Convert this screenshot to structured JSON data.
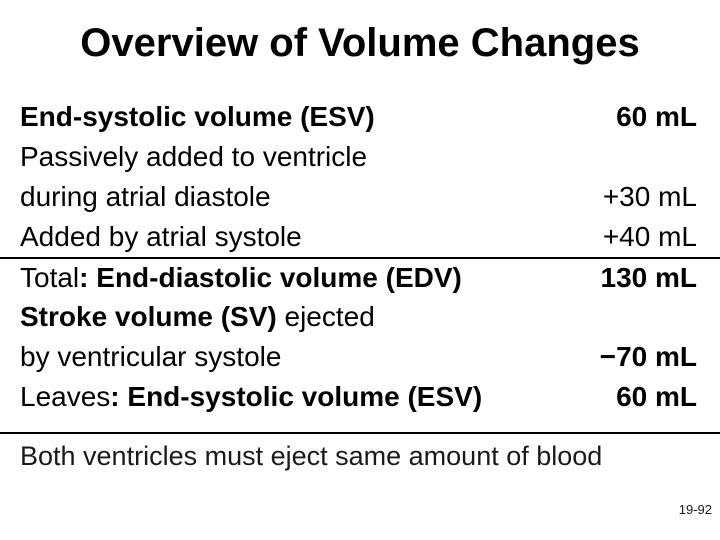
{
  "slide": {
    "title": "Overview of Volume Changes",
    "footer_note": "Both ventricles must eject same amount of blood",
    "page_number": "19-92"
  },
  "colors": {
    "background": "#ffffff",
    "text": "#000000",
    "divider": "#000000"
  },
  "volume_table": {
    "rows": [
      {
        "label": [
          {
            "text": "End-systolic volume (ESV)",
            "bold": true
          }
        ],
        "value": "60 mL",
        "value_bold": true,
        "divider_above": false
      },
      {
        "label": [
          {
            "text": "Passively added to ventricle",
            "bold": false
          }
        ],
        "value": "",
        "value_bold": false,
        "divider_above": false
      },
      {
        "label": [
          {
            "text": "during atrial diastole",
            "bold": false
          }
        ],
        "value": "+30 mL",
        "value_bold": false,
        "divider_above": false
      },
      {
        "label": [
          {
            "text": "Added by atrial systole",
            "bold": false
          }
        ],
        "value": "+40 mL",
        "value_bold": false,
        "divider_above": false
      },
      {
        "label": [
          {
            "text": "Total",
            "bold": false
          },
          {
            "text": ":",
            "bold": true
          },
          {
            "text": " End-diastolic volume (EDV)",
            "bold": true
          }
        ],
        "value": "130 mL",
        "value_bold": true,
        "divider_above": true
      },
      {
        "label": [
          {
            "text": "Stroke volume (SV)",
            "bold": true
          },
          {
            "text": " ejected",
            "bold": false
          }
        ],
        "value": "",
        "value_bold": false,
        "divider_above": false
      },
      {
        "label": [
          {
            "text": "by ventricular systole",
            "bold": false
          }
        ],
        "value": "−70 mL",
        "value_bold": true,
        "divider_above": false
      },
      {
        "label": [
          {
            "text": "Leaves",
            "bold": false
          },
          {
            "text": ":",
            "bold": true
          },
          {
            "text": " End-systolic volume (ESV)",
            "bold": true
          }
        ],
        "value": "60 mL",
        "value_bold": true,
        "divider_above": false
      }
    ]
  }
}
